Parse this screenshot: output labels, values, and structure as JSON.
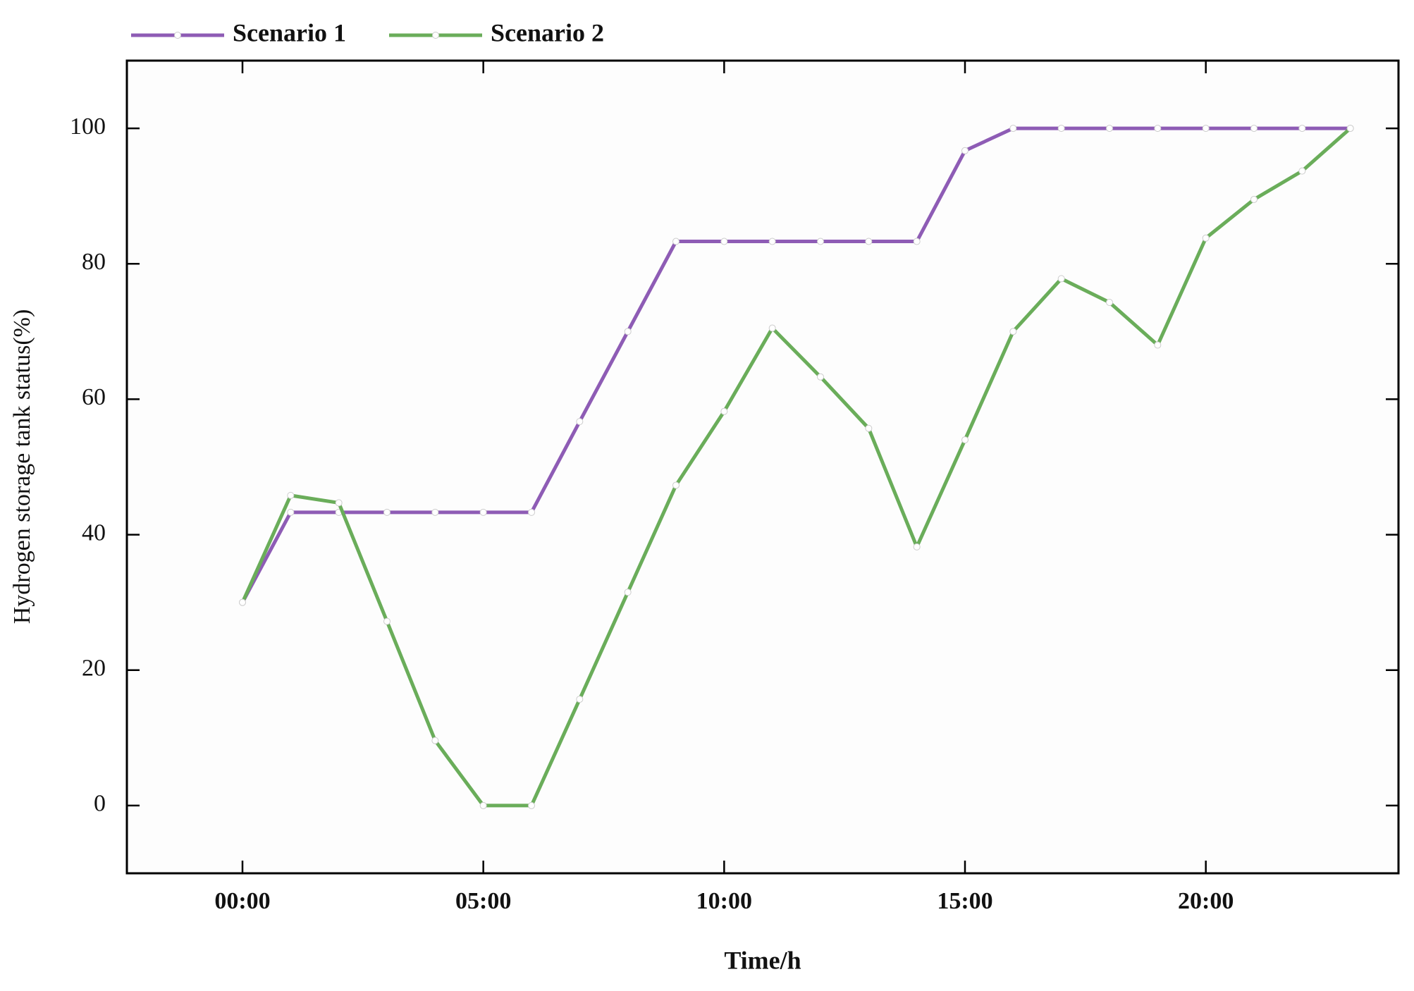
{
  "chart_data": {
    "type": "line",
    "x_label": "Time/h",
    "y_label": "Hydrogen storage tank status(%)",
    "x": [
      0,
      1,
      2,
      3,
      4,
      5,
      6,
      7,
      8,
      9,
      10,
      11,
      12,
      13,
      14,
      15,
      16,
      17,
      18,
      19,
      20,
      21,
      22,
      23
    ],
    "series": [
      {
        "name": "Scenario 1",
        "color": "#8e5cb5",
        "values": [
          30,
          43.3,
          43.3,
          43.3,
          43.3,
          43.3,
          43.3,
          56.7,
          70,
          83.3,
          83.3,
          83.3,
          83.3,
          83.3,
          83.3,
          96.7,
          100,
          100,
          100,
          100,
          100,
          100,
          100,
          100
        ]
      },
      {
        "name": "Scenario 2",
        "color": "#6aad5a",
        "values": [
          30,
          45.8,
          44.7,
          27.2,
          9.6,
          0,
          0,
          15.7,
          31.5,
          47.3,
          58.2,
          70.5,
          63.3,
          55.7,
          38.2,
          54,
          70,
          77.8,
          74.3,
          68,
          83.8,
          89.5,
          93.7,
          100
        ]
      }
    ],
    "xlim": [
      -2.4,
      24
    ],
    "ylim": [
      -10,
      110
    ],
    "xticks": [
      {
        "value": 0,
        "label": "00:00"
      },
      {
        "value": 5,
        "label": "05:00"
      },
      {
        "value": 10,
        "label": "10:00"
      },
      {
        "value": 15,
        "label": "15:00"
      },
      {
        "value": 20,
        "label": "20:00"
      }
    ],
    "yticks": [
      0,
      20,
      40,
      60,
      80,
      100
    ],
    "legend": "top-left",
    "grid": false
  }
}
